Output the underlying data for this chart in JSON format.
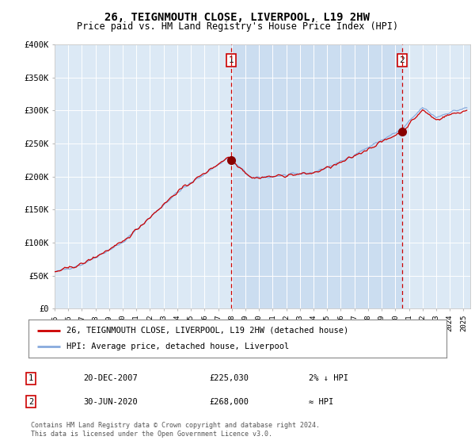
{
  "title": "26, TEIGNMOUTH CLOSE, LIVERPOOL, L19 2HW",
  "subtitle": "Price paid vs. HM Land Registry's House Price Index (HPI)",
  "legend_line1": "26, TEIGNMOUTH CLOSE, LIVERPOOL, L19 2HW (detached house)",
  "legend_line2": "HPI: Average price, detached house, Liverpool",
  "annotation1_label": "1",
  "annotation1_date": "20-DEC-2007",
  "annotation1_price": "£225,030",
  "annotation1_note": "2% ↓ HPI",
  "annotation2_label": "2",
  "annotation2_date": "30-JUN-2020",
  "annotation2_price": "£268,000",
  "annotation2_note": "≈ HPI",
  "footer": "Contains HM Land Registry data © Crown copyright and database right 2024.\nThis data is licensed under the Open Government Licence v3.0.",
  "plot_bg_color": "#dce9f5",
  "shaded_bg_color": "#c5d9ee",
  "line_color_property": "#cc0000",
  "line_color_hpi": "#88aadd",
  "vline_color": "#cc0000",
  "point_color": "#880000",
  "annotation_box_color": "#cc0000",
  "ylim": [
    0,
    400000
  ],
  "yticks": [
    0,
    50000,
    100000,
    150000,
    200000,
    250000,
    300000,
    350000,
    400000
  ],
  "ytick_labels": [
    "£0",
    "£50K",
    "£100K",
    "£150K",
    "£200K",
    "£250K",
    "£300K",
    "£350K",
    "£400K"
  ],
  "xmin": 1995.0,
  "xmax": 2025.5,
  "transaction1_x": 2007.97,
  "transaction1_y": 225030,
  "transaction2_x": 2020.5,
  "transaction2_y": 268000
}
